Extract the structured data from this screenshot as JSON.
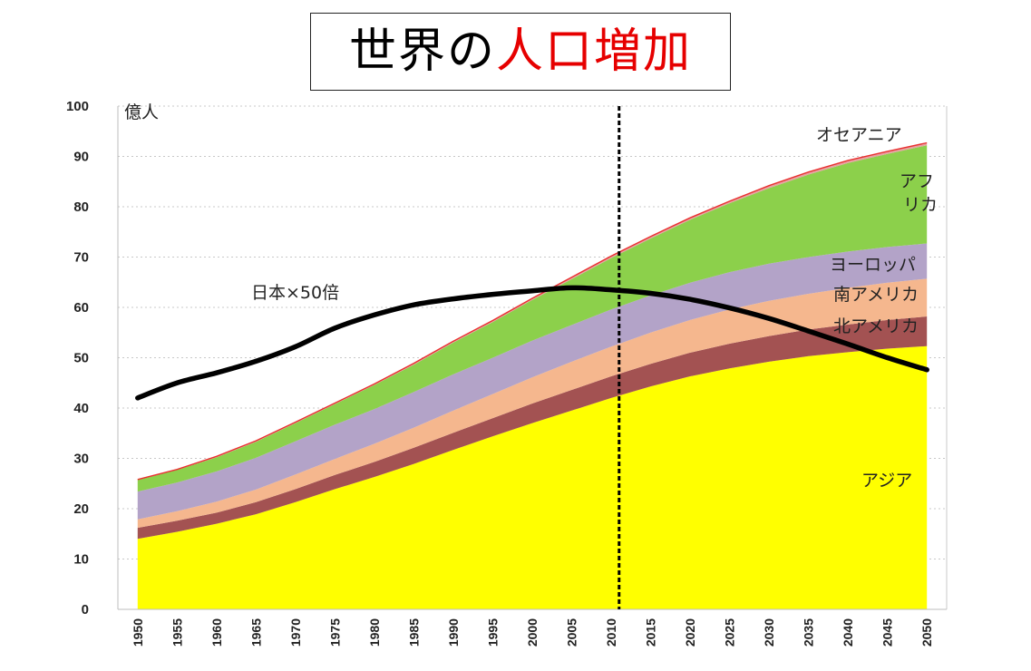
{
  "title": {
    "part1": "世界の",
    "part2": "人口増加",
    "part1_color": "#000000",
    "part2_color": "#e60000"
  },
  "chart_data": {
    "type": "area",
    "title": "世界の人口増加",
    "ylabel": "億人",
    "xlabel": "",
    "ylim": [
      0,
      100
    ],
    "yticks": [
      0,
      10,
      20,
      30,
      40,
      50,
      60,
      70,
      80,
      90,
      100
    ],
    "grid": true,
    "x": [
      1950,
      1955,
      1960,
      1965,
      1970,
      1975,
      1980,
      1985,
      1990,
      1995,
      2000,
      2005,
      2010,
      2015,
      2020,
      2025,
      2030,
      2035,
      2040,
      2045,
      2050
    ],
    "stacked": true,
    "series": [
      {
        "name": "アジア",
        "color": "#ffff00",
        "values": [
          14.0,
          15.4,
          17.0,
          18.9,
          21.3,
          23.9,
          26.3,
          28.9,
          31.7,
          34.4,
          37.0,
          39.5,
          42.0,
          44.3,
          46.3,
          47.9,
          49.2,
          50.3,
          51.1,
          51.8,
          52.3
        ]
      },
      {
        "name": "北アメリカ",
        "color": "#a35252",
        "values": [
          2.2,
          2.2,
          2.2,
          2.4,
          2.6,
          2.8,
          3.0,
          3.2,
          3.4,
          3.6,
          3.9,
          4.1,
          4.3,
          4.5,
          4.7,
          4.9,
          5.1,
          5.3,
          5.5,
          5.7,
          5.9
        ]
      },
      {
        "name": "南アメリカ",
        "color": "#f5b78e",
        "values": [
          1.7,
          1.9,
          2.2,
          2.5,
          2.9,
          3.2,
          3.6,
          4.0,
          4.4,
          4.8,
          5.2,
          5.6,
          5.9,
          6.2,
          6.5,
          6.8,
          7.0,
          7.1,
          7.3,
          7.4,
          7.5
        ]
      },
      {
        "name": "ヨーロッパ",
        "color": "#b3a3c8",
        "values": [
          5.5,
          5.7,
          6.0,
          6.3,
          6.6,
          6.8,
          6.9,
          7.1,
          7.2,
          7.2,
          7.3,
          7.3,
          7.4,
          7.4,
          7.4,
          7.4,
          7.4,
          7.3,
          7.2,
          7.1,
          7.0
        ]
      },
      {
        "name": "アフリカ",
        "color": "#8cd04b",
        "values": [
          2.3,
          2.5,
          2.8,
          3.2,
          3.6,
          4.1,
          4.8,
          5.4,
          6.3,
          7.1,
          8.1,
          9.1,
          10.2,
          11.3,
          12.5,
          13.7,
          15.0,
          16.4,
          17.6,
          18.5,
          19.5
        ]
      },
      {
        "name": "オセアニア",
        "color": "#e8a0a0",
        "values": [
          0.1,
          0.1,
          0.2,
          0.2,
          0.2,
          0.2,
          0.2,
          0.3,
          0.3,
          0.3,
          0.3,
          0.4,
          0.4,
          0.4,
          0.4,
          0.4,
          0.5,
          0.5,
          0.5,
          0.5,
          0.5
        ]
      }
    ],
    "line_series": {
      "name": "日本×50倍",
      "color": "#000000",
      "values": [
        42.0,
        45.0,
        47.0,
        49.3,
        52.2,
        55.9,
        58.5,
        60.5,
        61.7,
        62.6,
        63.3,
        63.9,
        63.5,
        62.8,
        61.6,
        59.9,
        57.8,
        55.3,
        52.7,
        50.0,
        47.6
      ]
    },
    "labels": {
      "unit": "億人",
      "oceania": "オセアニア",
      "africa_line1": "アフ",
      "africa_line2": "リカ",
      "europe": "ヨーロッパ",
      "south_america": "南アメリカ",
      "north_america": "北アメリカ",
      "asia": "アジア",
      "japan": "日本×50倍"
    },
    "reference_line": {
      "x": 2011,
      "style": "dashed",
      "color": "#000000"
    }
  }
}
